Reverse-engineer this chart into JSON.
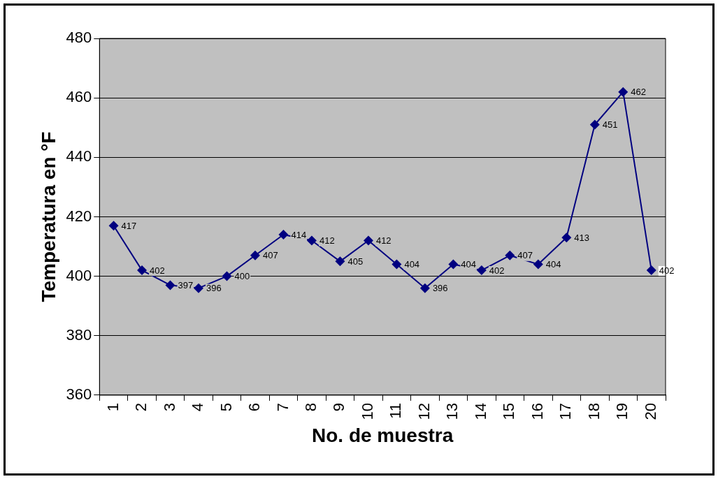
{
  "chart_data": {
    "type": "line",
    "xlabel": "No. de muestra",
    "ylabel": "Temperatura en °F",
    "categories": [
      "1",
      "2",
      "3",
      "4",
      "5",
      "6",
      "7",
      "8",
      "9",
      "10",
      "11",
      "12",
      "13",
      "14",
      "15",
      "16",
      "17",
      "18",
      "19",
      "20"
    ],
    "series": [
      {
        "color": "#000080",
        "values": [
          417,
          402,
          397,
          396,
          400,
          407,
          414,
          412,
          405,
          412,
          404,
          396,
          404,
          402,
          407,
          404,
          413,
          451,
          462,
          402
        ]
      }
    ],
    "ylim": [
      360,
      480
    ],
    "yticks": [
      360,
      380,
      400,
      420,
      440,
      460,
      480
    ],
    "grid": "y",
    "legend": false,
    "marker": "diamond",
    "line_style": "solid",
    "data_labels": true
  }
}
